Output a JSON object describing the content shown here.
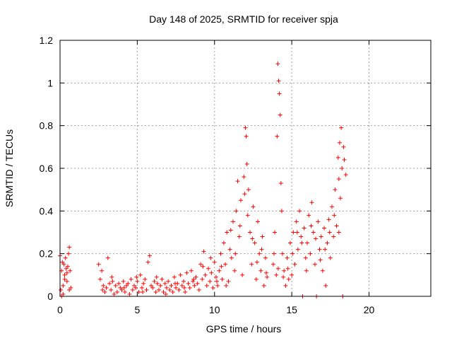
{
  "chart_data": {
    "type": "scatter",
    "title": "Day 148 of 2025, SRMTID for receiver spja",
    "xlabel": "GPS time / hours",
    "ylabel": "SRMTID / TECUs",
    "xlim": [
      0,
      24
    ],
    "ylim": [
      0,
      1.2
    ],
    "xticks": [
      0,
      5,
      10,
      15,
      20
    ],
    "xtick_labels": [
      "0",
      "5",
      "10",
      "15",
      "20"
    ],
    "yticks": [
      0,
      0.2,
      0.4,
      0.6,
      0.8,
      1.0,
      1.2
    ],
    "ytick_labels": [
      "0",
      "0.2",
      "0.4",
      "0.6",
      "0.8",
      "1",
      "1.2"
    ],
    "grid": true,
    "marker": "+",
    "series": [
      {
        "name": "SRMTID",
        "color": "#ff0000",
        "points": [
          [
            0.0,
            0.19
          ],
          [
            0.05,
            0.03
          ],
          [
            0.1,
            0.12
          ],
          [
            0.15,
            0.16
          ],
          [
            0.2,
            0.05
          ],
          [
            0.25,
            0.15
          ],
          [
            0.3,
            0.1
          ],
          [
            0.35,
            0.18
          ],
          [
            0.4,
            0.13
          ],
          [
            0.45,
            0.07
          ],
          [
            0.5,
            0.14
          ],
          [
            0.55,
            0.2
          ],
          [
            0.6,
            0.23
          ],
          [
            0.65,
            0.12
          ],
          [
            0.7,
            0.04
          ],
          [
            0.1,
            0.0
          ],
          [
            0.2,
            0.01
          ],
          [
            0.6,
            0.03
          ],
          [
            2.5,
            0.15
          ],
          [
            2.6,
            0.08
          ],
          [
            2.7,
            0.12
          ],
          [
            2.8,
            0.05
          ],
          [
            2.9,
            0.02
          ],
          [
            3.0,
            0.04
          ],
          [
            3.1,
            0.18
          ],
          [
            3.2,
            0.06
          ],
          [
            3.3,
            0.03
          ],
          [
            3.4,
            0.07
          ],
          [
            3.5,
            0.01
          ],
          [
            3.6,
            0.05
          ],
          [
            3.7,
            0.02
          ],
          [
            3.8,
            0.06
          ],
          [
            3.9,
            0.04
          ],
          [
            4.0,
            0.03
          ],
          [
            4.1,
            0.07
          ],
          [
            4.2,
            0.02
          ],
          [
            4.3,
            0.05
          ],
          [
            4.4,
            0.06
          ],
          [
            4.5,
            0.01
          ],
          [
            4.6,
            0.08
          ],
          [
            4.7,
            0.03
          ],
          [
            4.8,
            0.05
          ],
          [
            4.9,
            0.04
          ],
          [
            5.0,
            0.07
          ],
          [
            5.1,
            0.02
          ],
          [
            5.2,
            0.1
          ],
          [
            5.3,
            0.04
          ],
          [
            5.4,
            0.06
          ],
          [
            5.5,
            0.08
          ],
          [
            5.6,
            0.03
          ],
          [
            5.7,
            0.16
          ],
          [
            5.8,
            0.19
          ],
          [
            5.9,
            0.05
          ],
          [
            6.0,
            0.04
          ],
          [
            6.1,
            0.07
          ],
          [
            6.2,
            0.02
          ],
          [
            6.3,
            0.06
          ],
          [
            6.4,
            0.03
          ],
          [
            6.5,
            0.05
          ],
          [
            6.6,
            0.08
          ],
          [
            6.7,
            0.02
          ],
          [
            6.8,
            0.06
          ],
          [
            6.9,
            0.04
          ],
          [
            7.0,
            0.07
          ],
          [
            7.1,
            0.03
          ],
          [
            7.2,
            0.05
          ],
          [
            7.3,
            0.02
          ],
          [
            7.4,
            0.09
          ],
          [
            7.5,
            0.04
          ],
          [
            7.6,
            0.06
          ],
          [
            7.7,
            0.03
          ],
          [
            7.8,
            0.1
          ],
          [
            7.9,
            0.05
          ],
          [
            8.0,
            0.07
          ],
          [
            8.1,
            0.02
          ],
          [
            8.2,
            0.11
          ],
          [
            8.3,
            0.06
          ],
          [
            8.4,
            0.04
          ],
          [
            8.5,
            0.12
          ],
          [
            8.6,
            0.07
          ],
          [
            8.7,
            0.05
          ],
          [
            8.8,
            0.09
          ],
          [
            8.9,
            0.06
          ],
          [
            9.0,
            0.03
          ],
          [
            9.1,
            0.15
          ],
          [
            9.2,
            0.08
          ],
          [
            9.3,
            0.21
          ],
          [
            9.4,
            0.1
          ],
          [
            9.5,
            0.05
          ],
          [
            9.6,
            0.13
          ],
          [
            9.7,
            0.07
          ],
          [
            9.8,
            0.11
          ],
          [
            9.9,
            0.04
          ],
          [
            10.0,
            0.16
          ],
          [
            10.1,
            0.09
          ],
          [
            10.2,
            0.05
          ],
          [
            10.3,
            0.12
          ],
          [
            10.4,
            0.2
          ],
          [
            10.5,
            0.08
          ],
          [
            10.6,
            0.25
          ],
          [
            10.7,
            0.15
          ],
          [
            10.8,
            0.3
          ],
          [
            10.9,
            0.07
          ],
          [
            11.0,
            0.22
          ],
          [
            11.1,
            0.18
          ],
          [
            11.2,
            0.35
          ],
          [
            11.3,
            0.12
          ],
          [
            11.4,
            0.4
          ],
          [
            11.5,
            0.54
          ],
          [
            11.6,
            0.28
          ],
          [
            11.7,
            0.45
          ],
          [
            11.8,
            0.1
          ],
          [
            11.9,
            0.56
          ],
          [
            12.0,
            0.79
          ],
          [
            12.05,
            0.75
          ],
          [
            12.1,
            0.62
          ],
          [
            12.2,
            0.5
          ],
          [
            12.3,
            0.3
          ],
          [
            12.4,
            0.15
          ],
          [
            12.5,
            0.42
          ],
          [
            12.6,
            0.25
          ],
          [
            12.7,
            0.08
          ],
          [
            12.8,
            0.35
          ],
          [
            12.9,
            0.2
          ],
          [
            13.0,
            0.12
          ],
          [
            13.1,
            0.28
          ],
          [
            13.2,
            0.05
          ],
          [
            13.3,
            0.18
          ],
          [
            13.4,
            0.09
          ],
          [
            13.8,
            0.15
          ],
          [
            13.9,
            0.3
          ],
          [
            14.0,
            0.1
          ],
          [
            14.05,
            0.75
          ],
          [
            14.1,
            1.09
          ],
          [
            14.15,
            1.01
          ],
          [
            14.2,
            0.95
          ],
          [
            14.25,
            0.85
          ],
          [
            14.3,
            0.53
          ],
          [
            14.35,
            0.4
          ],
          [
            14.4,
            0.2
          ],
          [
            14.5,
            0.12
          ],
          [
            14.6,
            0.05
          ],
          [
            14.7,
            0.18
          ],
          [
            14.8,
            0.08
          ],
          [
            14.9,
            0.25
          ],
          [
            15.0,
            0.1
          ],
          [
            15.1,
            0.3
          ],
          [
            15.2,
            0.15
          ],
          [
            15.3,
            0.35
          ],
          [
            15.4,
            0.22
          ],
          [
            15.5,
            0.4
          ],
          [
            15.6,
            0.28
          ],
          [
            15.7,
            0.0
          ],
          [
            15.8,
            0.32
          ],
          [
            15.9,
            0.18
          ],
          [
            16.0,
            0.25
          ],
          [
            16.1,
            0.38
          ],
          [
            16.2,
            0.2
          ],
          [
            16.3,
            0.44
          ],
          [
            16.4,
            0.3
          ],
          [
            16.5,
            0.15
          ],
          [
            16.6,
            0.0
          ],
          [
            16.7,
            0.35
          ],
          [
            16.8,
            0.22
          ],
          [
            16.9,
            0.28
          ],
          [
            17.0,
            0.12
          ],
          [
            17.1,
            0.32
          ],
          [
            17.2,
            0.05
          ],
          [
            17.3,
            0.25
          ],
          [
            17.4,
            0.36
          ],
          [
            17.5,
            0.18
          ],
          [
            17.6,
            0.42
          ],
          [
            17.7,
            0.28
          ],
          [
            17.8,
            0.5
          ],
          [
            17.9,
            0.33
          ],
          [
            18.0,
            0.65
          ],
          [
            18.05,
            0.55
          ],
          [
            18.1,
            0.72
          ],
          [
            18.15,
            0.46
          ],
          [
            18.2,
            0.79
          ],
          [
            18.25,
            0.6
          ],
          [
            18.3,
            0.0
          ],
          [
            18.35,
            0.7
          ],
          [
            18.4,
            0.64
          ],
          [
            18.5,
            0.57
          ],
          [
            0.3,
            0.08
          ],
          [
            0.45,
            0.11
          ],
          [
            2.75,
            0.03
          ],
          [
            3.35,
            0.09
          ],
          [
            4.15,
            0.04
          ],
          [
            4.95,
            0.09
          ],
          [
            5.35,
            0.02
          ],
          [
            6.25,
            0.09
          ],
          [
            6.85,
            0.01
          ],
          [
            7.45,
            0.06
          ],
          [
            8.05,
            0.04
          ],
          [
            8.65,
            0.08
          ],
          [
            9.25,
            0.14
          ],
          [
            9.75,
            0.18
          ],
          [
            10.15,
            0.07
          ],
          [
            10.45,
            0.14
          ],
          [
            10.75,
            0.05
          ],
          [
            11.05,
            0.31
          ],
          [
            11.35,
            0.2
          ],
          [
            11.65,
            0.33
          ],
          [
            11.95,
            0.48
          ],
          [
            12.15,
            0.38
          ],
          [
            12.45,
            0.27
          ],
          [
            12.75,
            0.16
          ],
          [
            13.05,
            0.22
          ],
          [
            13.35,
            0.11
          ],
          [
            13.85,
            0.2
          ],
          [
            14.12,
            0.13
          ],
          [
            14.45,
            0.09
          ],
          [
            14.75,
            0.13
          ],
          [
            15.05,
            0.2
          ],
          [
            15.35,
            0.3
          ],
          [
            15.65,
            0.25
          ],
          [
            15.95,
            0.12
          ],
          [
            16.25,
            0.33
          ],
          [
            16.55,
            0.27
          ],
          [
            16.85,
            0.17
          ],
          [
            17.15,
            0.22
          ],
          [
            17.45,
            0.3
          ],
          [
            17.75,
            0.38
          ],
          [
            18.05,
            0.3
          ]
        ]
      }
    ]
  }
}
